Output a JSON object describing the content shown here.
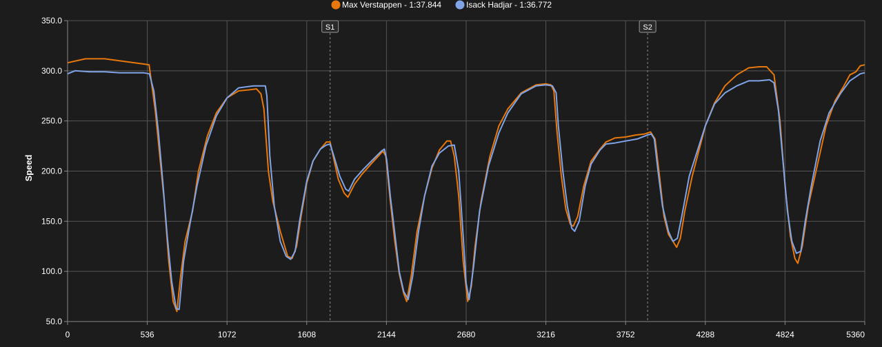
{
  "chart_data": {
    "type": "line",
    "title": "",
    "xlabel": "",
    "ylabel": "Speed",
    "xlim": [
      0,
      5360
    ],
    "ylim": [
      50,
      350
    ],
    "x_ticks": [
      0,
      536,
      1072,
      1608,
      2144,
      2680,
      3216,
      3752,
      4288,
      4824,
      5360
    ],
    "y_ticks": [
      "50.0",
      "100.0",
      "150.0",
      "200.0",
      "250.0",
      "300.0",
      "350.0"
    ],
    "grid": true,
    "legend": "top-center",
    "markers": [
      {
        "label": "S1",
        "x": 1765
      },
      {
        "label": "S2",
        "x": 3900
      }
    ],
    "series": [
      {
        "name": "Max Verstappen - 1:37.844",
        "color": "#e8780c",
        "points": [
          [
            0,
            308
          ],
          [
            120,
            312
          ],
          [
            250,
            312
          ],
          [
            400,
            309
          ],
          [
            500,
            307
          ],
          [
            548,
            306
          ],
          [
            590,
            260
          ],
          [
            620,
            215
          ],
          [
            650,
            170
          ],
          [
            680,
            110
          ],
          [
            710,
            70
          ],
          [
            735,
            60
          ],
          [
            760,
            95
          ],
          [
            790,
            130
          ],
          [
            840,
            160
          ],
          [
            880,
            200
          ],
          [
            940,
            235
          ],
          [
            1000,
            258
          ],
          [
            1072,
            273
          ],
          [
            1150,
            280
          ],
          [
            1220,
            281
          ],
          [
            1270,
            282
          ],
          [
            1300,
            277
          ],
          [
            1320,
            262
          ],
          [
            1350,
            200
          ],
          [
            1380,
            170
          ],
          [
            1430,
            140
          ],
          [
            1480,
            115
          ],
          [
            1510,
            113
          ],
          [
            1540,
            125
          ],
          [
            1570,
            155
          ],
          [
            1608,
            188
          ],
          [
            1650,
            210
          ],
          [
            1700,
            222
          ],
          [
            1740,
            229
          ],
          [
            1765,
            229
          ],
          [
            1790,
            212
          ],
          [
            1820,
            192
          ],
          [
            1860,
            178
          ],
          [
            1885,
            174
          ],
          [
            1930,
            187
          ],
          [
            1980,
            197
          ],
          [
            2040,
            207
          ],
          [
            2090,
            215
          ],
          [
            2120,
            220
          ],
          [
            2140,
            215
          ],
          [
            2170,
            170
          ],
          [
            2200,
            130
          ],
          [
            2230,
            98
          ],
          [
            2260,
            78
          ],
          [
            2280,
            70
          ],
          [
            2310,
            95
          ],
          [
            2350,
            140
          ],
          [
            2400,
            175
          ],
          [
            2450,
            203
          ],
          [
            2500,
            221
          ],
          [
            2550,
            230
          ],
          [
            2575,
            230
          ],
          [
            2600,
            215
          ],
          [
            2630,
            175
          ],
          [
            2660,
            110
          ],
          [
            2690,
            70
          ],
          [
            2715,
            85
          ],
          [
            2740,
            125
          ],
          [
            2780,
            170
          ],
          [
            2840,
            215
          ],
          [
            2900,
            245
          ],
          [
            2960,
            262
          ],
          [
            3050,
            278
          ],
          [
            3150,
            286
          ],
          [
            3216,
            287
          ],
          [
            3250,
            286
          ],
          [
            3270,
            280
          ],
          [
            3290,
            240
          ],
          [
            3320,
            195
          ],
          [
            3350,
            162
          ],
          [
            3380,
            147
          ],
          [
            3400,
            145
          ],
          [
            3430,
            155
          ],
          [
            3470,
            185
          ],
          [
            3520,
            210
          ],
          [
            3580,
            222
          ],
          [
            3620,
            229
          ],
          [
            3680,
            233
          ],
          [
            3752,
            234
          ],
          [
            3820,
            236
          ],
          [
            3880,
            237
          ],
          [
            3920,
            239
          ],
          [
            3950,
            232
          ],
          [
            3980,
            195
          ],
          [
            4010,
            155
          ],
          [
            4040,
            137
          ],
          [
            4070,
            130
          ],
          [
            4095,
            124
          ],
          [
            4120,
            133
          ],
          [
            4150,
            160
          ],
          [
            4200,
            195
          ],
          [
            4288,
            245
          ],
          [
            4350,
            268
          ],
          [
            4420,
            285
          ],
          [
            4500,
            296
          ],
          [
            4580,
            303
          ],
          [
            4650,
            304
          ],
          [
            4700,
            304
          ],
          [
            4750,
            296
          ],
          [
            4790,
            250
          ],
          [
            4824,
            185
          ],
          [
            4860,
            135
          ],
          [
            4890,
            113
          ],
          [
            4910,
            108
          ],
          [
            4940,
            125
          ],
          [
            4980,
            165
          ],
          [
            5040,
            205
          ],
          [
            5100,
            245
          ],
          [
            5160,
            270
          ],
          [
            5220,
            285
          ],
          [
            5260,
            296
          ],
          [
            5300,
            299
          ],
          [
            5330,
            305
          ],
          [
            5360,
            306
          ]
        ]
      },
      {
        "name": "Isack Hadjar - 1:36.772",
        "color": "#7fa5e8",
        "points": [
          [
            0,
            297
          ],
          [
            50,
            300
          ],
          [
            150,
            299
          ],
          [
            250,
            299
          ],
          [
            350,
            298
          ],
          [
            450,
            298
          ],
          [
            510,
            298
          ],
          [
            550,
            297
          ],
          [
            580,
            280
          ],
          [
            610,
            240
          ],
          [
            640,
            190
          ],
          [
            670,
            135
          ],
          [
            700,
            90
          ],
          [
            730,
            63
          ],
          [
            750,
            62
          ],
          [
            780,
            110
          ],
          [
            820,
            145
          ],
          [
            870,
            185
          ],
          [
            930,
            225
          ],
          [
            1000,
            255
          ],
          [
            1072,
            273
          ],
          [
            1150,
            283
          ],
          [
            1250,
            285
          ],
          [
            1300,
            285
          ],
          [
            1330,
            285
          ],
          [
            1340,
            275
          ],
          [
            1360,
            215
          ],
          [
            1390,
            165
          ],
          [
            1430,
            130
          ],
          [
            1470,
            115
          ],
          [
            1500,
            112
          ],
          [
            1530,
            120
          ],
          [
            1560,
            150
          ],
          [
            1608,
            190
          ],
          [
            1650,
            210
          ],
          [
            1700,
            222
          ],
          [
            1740,
            226
          ],
          [
            1765,
            227
          ],
          [
            1790,
            215
          ],
          [
            1830,
            195
          ],
          [
            1870,
            182
          ],
          [
            1890,
            180
          ],
          [
            1930,
            192
          ],
          [
            1990,
            202
          ],
          [
            2050,
            211
          ],
          [
            2110,
            220
          ],
          [
            2130,
            222
          ],
          [
            2145,
            212
          ],
          [
            2170,
            175
          ],
          [
            2200,
            138
          ],
          [
            2230,
            100
          ],
          [
            2260,
            80
          ],
          [
            2290,
            72
          ],
          [
            2320,
            95
          ],
          [
            2360,
            140
          ],
          [
            2400,
            175
          ],
          [
            2450,
            205
          ],
          [
            2500,
            218
          ],
          [
            2560,
            225
          ],
          [
            2600,
            226
          ],
          [
            2630,
            200
          ],
          [
            2660,
            135
          ],
          [
            2680,
            88
          ],
          [
            2700,
            72
          ],
          [
            2730,
            105
          ],
          [
            2770,
            160
          ],
          [
            2830,
            205
          ],
          [
            2900,
            238
          ],
          [
            2960,
            258
          ],
          [
            3050,
            277
          ],
          [
            3150,
            285
          ],
          [
            3216,
            286
          ],
          [
            3260,
            285
          ],
          [
            3285,
            278
          ],
          [
            3300,
            245
          ],
          [
            3330,
            200
          ],
          [
            3360,
            165
          ],
          [
            3390,
            143
          ],
          [
            3410,
            140
          ],
          [
            3440,
            150
          ],
          [
            3480,
            185
          ],
          [
            3520,
            207
          ],
          [
            3580,
            221
          ],
          [
            3620,
            227
          ],
          [
            3680,
            228
          ],
          [
            3752,
            230
          ],
          [
            3830,
            232
          ],
          [
            3900,
            236
          ],
          [
            3925,
            237
          ],
          [
            3945,
            232
          ],
          [
            3970,
            200
          ],
          [
            4000,
            165
          ],
          [
            4040,
            140
          ],
          [
            4070,
            130
          ],
          [
            4100,
            133
          ],
          [
            4130,
            155
          ],
          [
            4180,
            195
          ],
          [
            4288,
            245
          ],
          [
            4350,
            267
          ],
          [
            4420,
            278
          ],
          [
            4500,
            285
          ],
          [
            4580,
            290
          ],
          [
            4650,
            290
          ],
          [
            4720,
            291
          ],
          [
            4750,
            288
          ],
          [
            4780,
            260
          ],
          [
            4810,
            210
          ],
          [
            4840,
            160
          ],
          [
            4870,
            130
          ],
          [
            4900,
            118
          ],
          [
            4930,
            120
          ],
          [
            4960,
            150
          ],
          [
            5000,
            185
          ],
          [
            5060,
            230
          ],
          [
            5120,
            258
          ],
          [
            5200,
            278
          ],
          [
            5260,
            290
          ],
          [
            5300,
            294
          ],
          [
            5330,
            297
          ],
          [
            5360,
            298
          ]
        ]
      }
    ]
  }
}
